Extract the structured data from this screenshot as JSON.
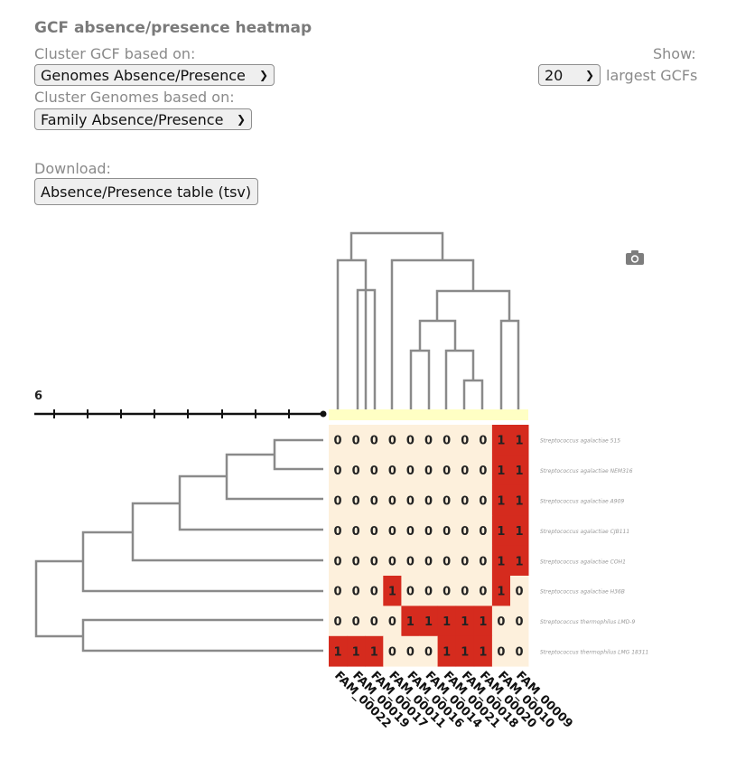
{
  "header": {
    "title": "GCF absence/presence heatmap",
    "cluster_gcf_label": "Cluster GCF based on:",
    "cluster_gcf_value": "Genomes Absence/Presence",
    "cluster_genomes_label": "Cluster Genomes based on:",
    "cluster_genomes_value": "Family Absence/Presence",
    "show_label": "Show:",
    "show_value": "20",
    "show_suffix": "largest GCFs",
    "download_label": "Download:",
    "download_button": "Absence/Presence table (tsv)"
  },
  "icons": {
    "camera": "camera-icon",
    "chevron": "chevron-down-icon"
  },
  "chart_data": {
    "type": "heatmap",
    "scale_label": "6",
    "columns": [
      "FAM_00022",
      "FAM_00019",
      "FAM_00017",
      "FAM_00011",
      "FAM_00016",
      "FAM_00014",
      "FAM_00021",
      "FAM_00018",
      "FAM_00020",
      "FAM_00010",
      "FAM_00009"
    ],
    "rows": [
      "Streptococcus agalactiae 515",
      "Streptococcus agalactiae NEM316",
      "Streptococcus agalactiae A909",
      "Streptococcus agalactiae CJB111",
      "Streptococcus agalactiae COH1",
      "Streptococcus agalactiae H36B",
      "Streptococcus thermophilus LMD-9",
      "Streptococcus thermophilus LMG 18311"
    ],
    "values": [
      [
        0,
        0,
        0,
        0,
        0,
        0,
        0,
        0,
        0,
        1,
        1
      ],
      [
        0,
        0,
        0,
        0,
        0,
        0,
        0,
        0,
        0,
        1,
        1
      ],
      [
        0,
        0,
        0,
        0,
        0,
        0,
        0,
        0,
        0,
        1,
        1
      ],
      [
        0,
        0,
        0,
        0,
        0,
        0,
        0,
        0,
        0,
        1,
        1
      ],
      [
        0,
        0,
        0,
        0,
        0,
        0,
        0,
        0,
        0,
        1,
        1
      ],
      [
        0,
        0,
        0,
        1,
        0,
        0,
        0,
        0,
        0,
        1,
        0
      ],
      [
        0,
        0,
        0,
        0,
        1,
        1,
        1,
        1,
        1,
        0,
        0
      ],
      [
        1,
        1,
        1,
        0,
        0,
        0,
        1,
        1,
        1,
        0,
        0
      ]
    ],
    "colors": {
      "present": "#d52b1e",
      "absent": "#fdf0dc",
      "header_band": "#ffffc4",
      "tree": "#8a8a8a"
    }
  }
}
